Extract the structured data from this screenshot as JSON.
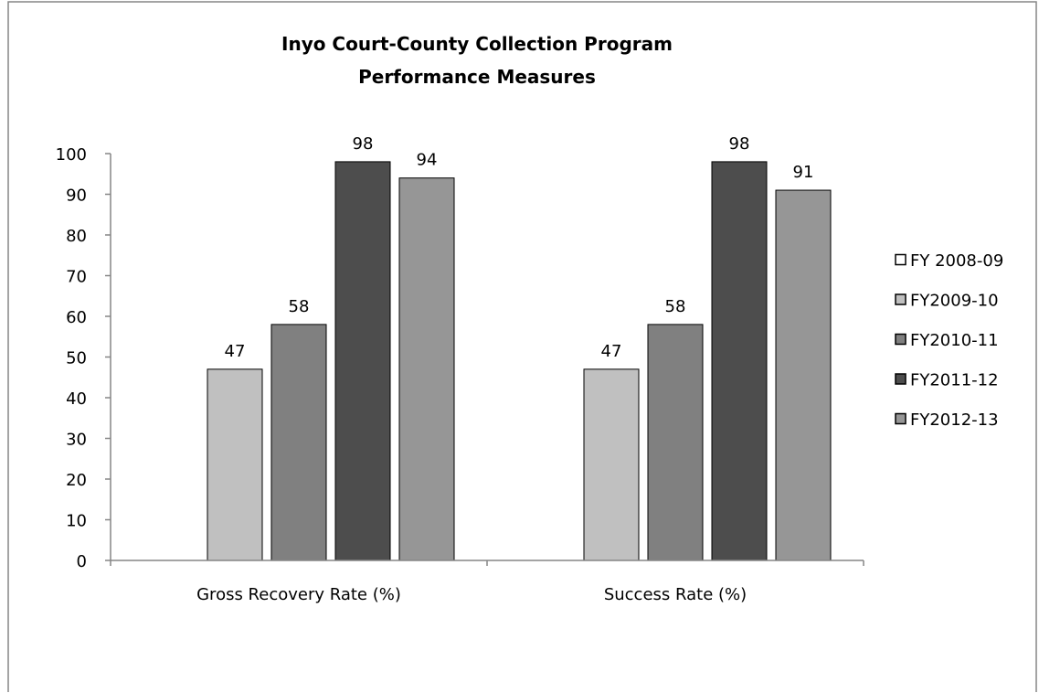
{
  "chart_data": {
    "type": "bar",
    "title": "Inyo Court-County Collection Program",
    "subtitle": "Performance Measures",
    "xlabel": "",
    "ylabel": "",
    "categories": [
      "Gross Recovery Rate (%)",
      "Success Rate (%)"
    ],
    "ylim": [
      0,
      100
    ],
    "yticks": [
      "0",
      "10",
      "20",
      "30",
      "40",
      "50",
      "60",
      "70",
      "80",
      "90",
      "100"
    ],
    "grid": false,
    "legend_position": "right",
    "series": [
      {
        "name": "FY 2008-09",
        "values": [
          null,
          null
        ],
        "color": "#ffffff"
      },
      {
        "name": "FY2009-10",
        "values": [
          47,
          47
        ],
        "color": "#c0c0c0"
      },
      {
        "name": "FY2010-11",
        "values": [
          58,
          58
        ],
        "color": "#808080"
      },
      {
        "name": "FY2011-12",
        "values": [
          98,
          98
        ],
        "color": "#4d4d4d"
      },
      {
        "name": "FY2012-13",
        "values": [
          94,
          91
        ],
        "color": "#969696"
      }
    ]
  }
}
